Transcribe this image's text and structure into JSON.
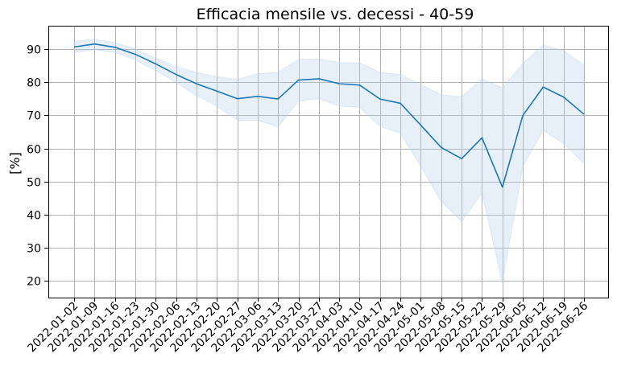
{
  "chart_data": {
    "type": "line",
    "title": "Efficacia mensile vs. decessi - 40-59",
    "xlabel": "",
    "ylabel": "[%]",
    "x": [
      "2022-01-02",
      "2022-01-09",
      "2022-01-16",
      "2022-01-23",
      "2022-01-30",
      "2022-02-06",
      "2022-02-13",
      "2022-02-20",
      "2022-02-27",
      "2022-03-06",
      "2022-03-13",
      "2022-03-20",
      "2022-03-27",
      "2022-04-03",
      "2022-04-10",
      "2022-04-17",
      "2022-04-24",
      "2022-05-01",
      "2022-05-08",
      "2022-05-15",
      "2022-05-22",
      "2022-05-29",
      "2022-06-05",
      "2022-06-12",
      "2022-06-19",
      "2022-06-26"
    ],
    "series": [
      {
        "values": [
          90.6,
          91.5,
          90.5,
          88.4,
          85.5,
          82.3,
          79.5,
          77.3,
          75.0,
          75.7,
          74.9,
          80.6,
          81.0,
          79.5,
          79.1,
          74.9,
          73.6,
          67.0,
          60.3,
          56.9,
          63.2,
          48.3,
          69.9,
          78.5,
          75.5,
          70.3
        ],
        "lower": [
          88.9,
          89.8,
          89.0,
          86.7,
          83.5,
          79.8,
          75.9,
          72.8,
          68.5,
          68.5,
          66.5,
          74.3,
          75.0,
          72.8,
          72.4,
          66.6,
          64.6,
          54.5,
          44.0,
          38.0,
          46.5,
          19.5,
          54.5,
          65.5,
          61.5,
          55.5
        ],
        "upper": [
          92.2,
          93.0,
          91.9,
          90.0,
          87.2,
          84.7,
          82.9,
          81.6,
          80.8,
          82.5,
          83.0,
          86.8,
          87.0,
          85.9,
          85.8,
          82.9,
          82.3,
          79.2,
          76.2,
          75.5,
          81.0,
          78.3,
          85.6,
          91.2,
          89.5,
          85.1
        ],
        "color": "#1f77b4",
        "band_color": "#aecde8"
      }
    ],
    "yticks": [
      20,
      30,
      40,
      50,
      60,
      70,
      80,
      90
    ],
    "ylim": [
      15,
      97
    ],
    "grid": true
  }
}
